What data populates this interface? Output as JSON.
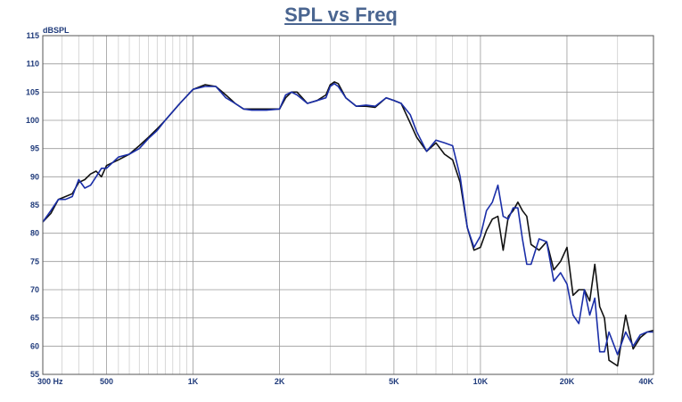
{
  "chart_data": {
    "type": "line",
    "title": "SPL vs Freq",
    "ylabel": "dBSPL",
    "xlabel": "",
    "xscale": "log",
    "xlim": [
      300,
      40000
    ],
    "ylim": [
      55,
      115
    ],
    "grid": true,
    "x_ticks": [
      {
        "value": 300,
        "label": "300  Hz"
      },
      {
        "value": 500,
        "label": "500"
      },
      {
        "value": 1000,
        "label": "1K"
      },
      {
        "value": 2000,
        "label": "2K"
      },
      {
        "value": 5000,
        "label": "5K"
      },
      {
        "value": 10000,
        "label": "10K"
      },
      {
        "value": 20000,
        "label": "20K"
      },
      {
        "value": 40000,
        "label": "40K"
      }
    ],
    "y_ticks": [
      55,
      60,
      65,
      70,
      75,
      80,
      85,
      90,
      95,
      100,
      105,
      110,
      115
    ],
    "series": [
      {
        "color": "#111111",
        "x": [
          300,
          320,
          340,
          360,
          380,
          400,
          420,
          440,
          460,
          480,
          500,
          550,
          600,
          650,
          700,
          750,
          800,
          900,
          1000,
          1100,
          1200,
          1300,
          1400,
          1500,
          1600,
          1800,
          2000,
          2100,
          2200,
          2300,
          2500,
          2700,
          2900,
          3000,
          3100,
          3200,
          3400,
          3700,
          4000,
          4300,
          4700,
          5000,
          5300,
          5700,
          6000,
          6500,
          7000,
          7500,
          8000,
          8500,
          9000,
          9500,
          10000,
          10500,
          11000,
          11500,
          12000,
          12500,
          13000,
          13500,
          14000,
          14500,
          15000,
          16000,
          17000,
          18000,
          19000,
          20000,
          21000,
          22000,
          23000,
          24000,
          25000,
          26000,
          27000,
          28000,
          30000,
          32000,
          34000,
          36000,
          38000,
          40000
        ],
        "y": [
          82,
          83.5,
          86,
          86.5,
          87,
          89,
          89.5,
          90.5,
          91,
          90,
          92,
          93,
          94,
          95.5,
          97,
          98.5,
          100,
          103,
          105.5,
          106.3,
          106,
          104.5,
          103,
          102,
          102,
          102,
          102,
          104,
          105,
          105,
          103,
          103.5,
          104.5,
          106.3,
          106.8,
          106.5,
          104,
          102.5,
          102.5,
          102.3,
          104,
          103.5,
          103,
          99.5,
          97,
          94.5,
          96,
          94,
          93,
          89,
          81,
          77,
          77.5,
          80.5,
          82.5,
          83,
          77,
          83,
          84,
          85.5,
          84,
          83,
          78,
          77,
          78.5,
          73.5,
          75,
          77.5,
          69,
          70,
          70,
          68,
          74.5,
          67,
          65,
          57.5,
          56.5,
          65.5,
          59.5,
          61.5,
          62.5,
          62.8
        ]
      },
      {
        "color": "#1a2ea8",
        "x": [
          300,
          320,
          340,
          360,
          380,
          400,
          420,
          440,
          460,
          480,
          500,
          550,
          600,
          650,
          700,
          750,
          800,
          900,
          1000,
          1100,
          1200,
          1300,
          1400,
          1500,
          1600,
          1800,
          2000,
          2100,
          2200,
          2300,
          2500,
          2700,
          2900,
          3000,
          3100,
          3200,
          3400,
          3700,
          4000,
          4300,
          4700,
          5000,
          5300,
          5700,
          6000,
          6500,
          7000,
          7500,
          8000,
          8500,
          9000,
          9500,
          10000,
          10500,
          11000,
          11500,
          12000,
          12500,
          13000,
          13500,
          14000,
          14500,
          15000,
          16000,
          17000,
          18000,
          19000,
          20000,
          21000,
          22000,
          23000,
          24000,
          25000,
          26000,
          27000,
          28000,
          30000,
          32000,
          34000,
          36000,
          38000,
          40000
        ],
        "y": [
          82,
          84,
          86,
          86,
          86.5,
          89.5,
          88,
          88.5,
          90,
          91.5,
          91.5,
          93.5,
          94,
          95,
          96.8,
          98.2,
          100,
          103,
          105.5,
          106,
          106,
          104,
          103,
          102,
          101.8,
          101.8,
          102,
          104.5,
          105,
          104.5,
          103,
          103.5,
          104,
          106,
          106.5,
          106,
          104,
          102.5,
          102.7,
          102.5,
          104,
          103.5,
          103,
          101,
          98,
          94.5,
          96.5,
          96,
          95.5,
          90,
          81,
          77.5,
          79.5,
          84,
          85.5,
          88.5,
          83,
          82.5,
          84.5,
          84.5,
          79,
          74.5,
          74.5,
          79,
          78.5,
          71.5,
          73,
          71,
          65.5,
          64,
          70,
          65.5,
          68.5,
          59,
          59,
          62.5,
          58.5,
          62.5,
          60,
          62,
          62.5,
          62.5
        ]
      }
    ]
  }
}
